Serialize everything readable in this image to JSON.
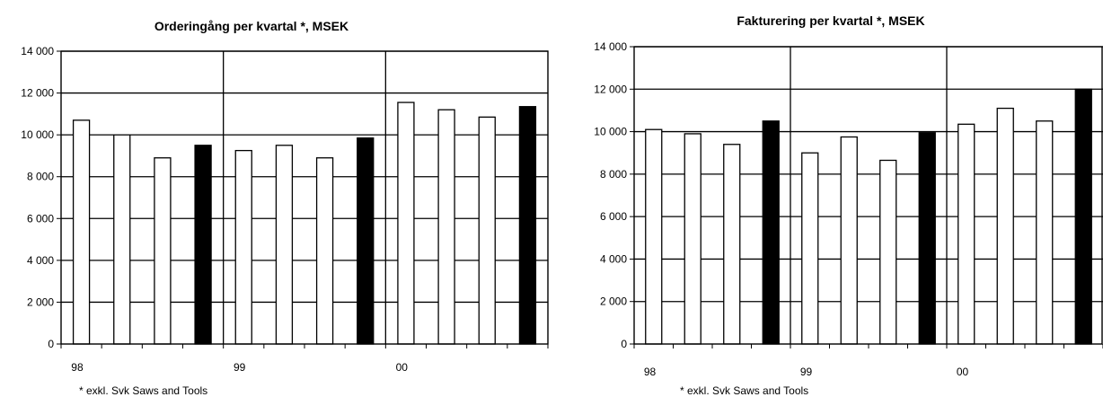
{
  "chart_data": [
    {
      "type": "bar",
      "title": "Orderingång per kvartal *, MSEK",
      "categories": [
        "98 Q1",
        "98 Q2",
        "98 Q3",
        "98 Q4",
        "99 Q1",
        "99 Q2",
        "99 Q3",
        "99 Q4",
        "00 Q1",
        "00 Q2",
        "00 Q3",
        "00 Q4"
      ],
      "values": [
        10700,
        10000,
        8900,
        9500,
        9250,
        9500,
        8900,
        9850,
        11550,
        11200,
        10850,
        11350
      ],
      "highlight_index": [
        3,
        7,
        11
      ],
      "year_labels": [
        "98",
        "99",
        "00"
      ],
      "y_ticks": [
        "0",
        "2 000",
        "4 000",
        "6 000",
        "8 000",
        "10 000",
        "12 000",
        "14 000"
      ],
      "ylim": [
        0,
        14000
      ],
      "grid": true,
      "footnote": "* exkl. Svk Saws and Tools",
      "colors": {
        "bar": "#ffffff",
        "highlight": "#000000",
        "stroke": "#000000"
      }
    },
    {
      "type": "bar",
      "title": "Fakturering per kvartal *, MSEK",
      "categories": [
        "98 Q1",
        "98 Q2",
        "98 Q3",
        "98 Q4",
        "99 Q1",
        "99 Q2",
        "99 Q3",
        "99 Q4",
        "00 Q1",
        "00 Q2",
        "00 Q3",
        "00 Q4"
      ],
      "values": [
        10100,
        9900,
        9400,
        10500,
        9000,
        9750,
        8650,
        9950,
        10350,
        11100,
        10500,
        12000
      ],
      "highlight_index": [
        3,
        7,
        11
      ],
      "year_labels": [
        "98",
        "99",
        "00"
      ],
      "y_ticks": [
        "0",
        "2 000",
        "4 000",
        "6 000",
        "8 000",
        "10 000",
        "12 000",
        "14 000"
      ],
      "ylim": [
        0,
        14000
      ],
      "grid": true,
      "footnote": "* exkl. Svk Saws and Tools",
      "colors": {
        "bar": "#ffffff",
        "highlight": "#000000",
        "stroke": "#000000"
      }
    }
  ]
}
